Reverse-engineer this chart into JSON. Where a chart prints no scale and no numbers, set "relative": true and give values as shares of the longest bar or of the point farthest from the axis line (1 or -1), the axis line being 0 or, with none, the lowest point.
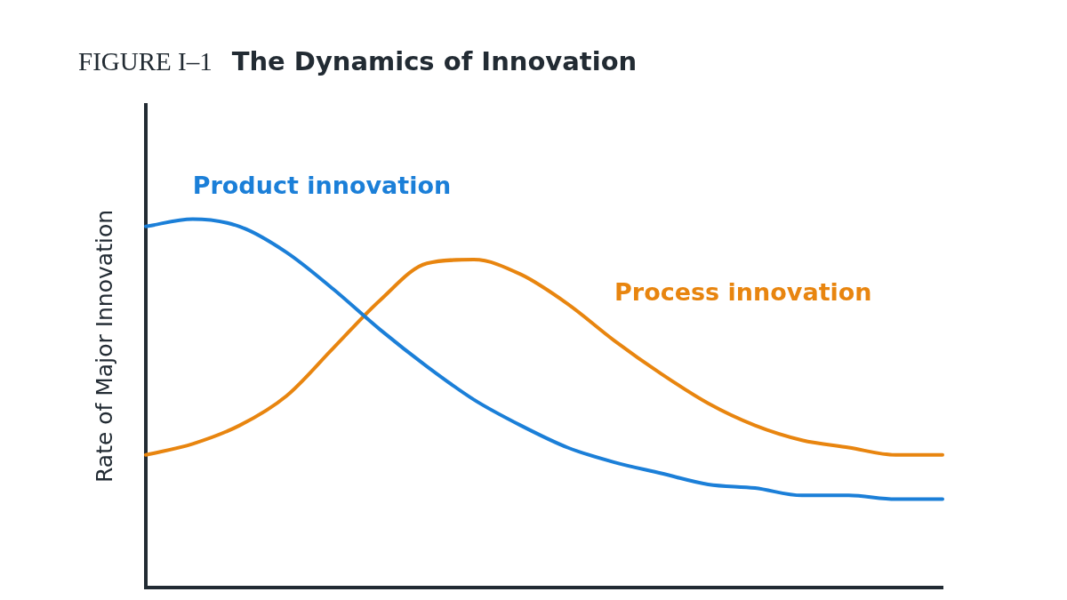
{
  "chart_data": {
    "type": "line",
    "title": "The Dynamics of Innovation",
    "annotations": [
      "FIGURE I–1"
    ],
    "ylabel": "Rate of Major Innovation",
    "relative": true,
    "legend": false,
    "grid": false,
    "marker": "none",
    "line_style": "solid",
    "categories": [
      null,
      null,
      null,
      null,
      null,
      null,
      null,
      null,
      null,
      null,
      null,
      null,
      null,
      null,
      null,
      null,
      null,
      null
    ],
    "series": [
      {
        "name": "Product innovation",
        "color": "#1b7fd8",
        "values": [
          0.98,
          1,
          0.98,
          0.91,
          0.81,
          0.7,
          0.6,
          0.51,
          0.44,
          0.38,
          0.34,
          0.31,
          0.28,
          0.27,
          0.25,
          0.25,
          0.24,
          0.24
        ]
      },
      {
        "name": "Process innovation",
        "color": "#e8850f",
        "values": [
          0.36,
          0.39,
          0.44,
          0.52,
          0.65,
          0.78,
          0.88,
          0.89,
          0.85,
          0.77,
          0.67,
          0.58,
          0.5,
          0.44,
          0.4,
          0.38,
          0.36,
          0.36
        ]
      }
    ]
  }
}
